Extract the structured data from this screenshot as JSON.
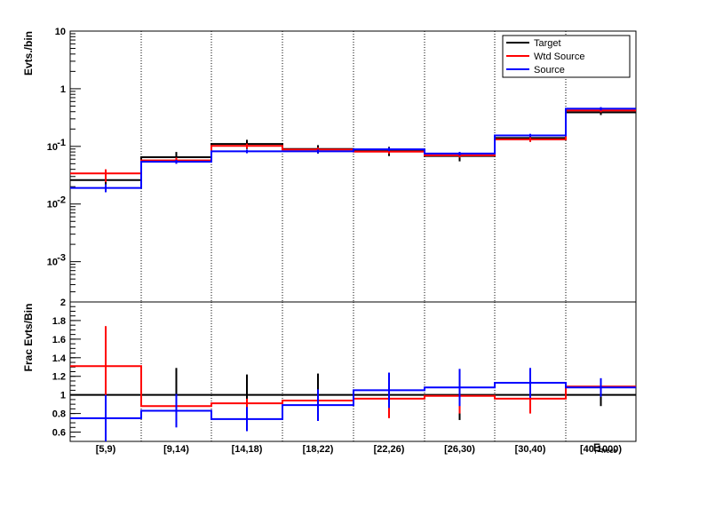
{
  "chart_data": [
    {
      "type": "histogram",
      "panel": "top",
      "ylabel": "Evts./bin",
      "yscale": "log",
      "ylim": [
        0.0002,
        10
      ],
      "yticks": [
        {
          "value": 10,
          "label": "10"
        },
        {
          "value": 1,
          "label": "1"
        },
        {
          "value": 0.1,
          "label": "10",
          "exp": "-1"
        },
        {
          "value": 0.01,
          "label": "10",
          "exp": "-2"
        },
        {
          "value": 0.001,
          "label": "10",
          "exp": "-3"
        }
      ],
      "categories": [
        "[5,9)",
        "[9,14)",
        "[14,18)",
        "[18,22)",
        "[22,26)",
        "[26,30)",
        "[30,40)",
        "[40,1000)"
      ],
      "legend": {
        "position": "top-right"
      },
      "series": [
        {
          "name": "Target",
          "color": "#000000",
          "values": [
            0.026,
            0.065,
            0.11,
            0.09,
            0.083,
            0.068,
            0.14,
            0.39
          ],
          "err_low": [
            0.018,
            0.05,
            0.09,
            0.075,
            0.068,
            0.055,
            0.12,
            0.35
          ],
          "err_high": [
            0.036,
            0.08,
            0.13,
            0.105,
            0.098,
            0.08,
            0.16,
            0.43
          ]
        },
        {
          "name": "Wtd Source",
          "color": "#ff0000",
          "values": [
            0.034,
            0.057,
            0.102,
            0.088,
            0.081,
            0.07,
            0.132,
            0.42
          ],
          "err_low": [
            0.024,
            0.05,
            0.092,
            0.08,
            0.074,
            0.064,
            0.12,
            0.39
          ],
          "err_high": [
            0.04,
            0.064,
            0.112,
            0.096,
            0.088,
            0.076,
            0.144,
            0.45
          ]
        },
        {
          "name": "Source",
          "color": "#0000ff",
          "values": [
            0.019,
            0.054,
            0.082,
            0.082,
            0.089,
            0.075,
            0.155,
            0.45
          ],
          "err_low": [
            0.016,
            0.05,
            0.076,
            0.076,
            0.083,
            0.07,
            0.145,
            0.42
          ],
          "err_high": [
            0.022,
            0.058,
            0.088,
            0.088,
            0.095,
            0.08,
            0.165,
            0.48
          ]
        }
      ]
    },
    {
      "type": "histogram",
      "panel": "bottom",
      "ylabel": "Frac Evts/Bin",
      "xlabel": "E",
      "xlabel_sub": "Treco",
      "ylim": [
        0.5,
        2
      ],
      "yticks": [
        {
          "value": 2,
          "label": "2"
        },
        {
          "value": 1.8,
          "label": "1.8"
        },
        {
          "value": 1.6,
          "label": "1.6"
        },
        {
          "value": 1.4,
          "label": "1.4"
        },
        {
          "value": 1.2,
          "label": "1.2"
        },
        {
          "value": 1,
          "label": "1"
        },
        {
          "value": 0.8,
          "label": "0.8"
        },
        {
          "value": 0.6,
          "label": "0.6"
        }
      ],
      "categories": [
        "[5,9)",
        "[9,14)",
        "[14,18)",
        "[18,22)",
        "[22,26)",
        "[26,30)",
        "[30,40)",
        "[40,1000)"
      ],
      "series": [
        {
          "name": "Target",
          "color": "#000000",
          "values": [
            1,
            1,
            1,
            1,
            1,
            1,
            1,
            1
          ],
          "err_low": [
            1,
            0.72,
            0.76,
            0.77,
            1,
            0.73,
            1,
            0.88
          ],
          "err_high": [
            1,
            1.29,
            1.22,
            1.23,
            1,
            1.24,
            1,
            1.13
          ]
        },
        {
          "name": "Wtd Source",
          "color": "#ff0000",
          "values": [
            1.31,
            0.88,
            0.91,
            0.94,
            0.96,
            0.99,
            0.96,
            1.09
          ],
          "err_low": [
            0.9,
            0.83,
            0.86,
            0.89,
            0.75,
            0.8,
            0.8,
            1.05
          ],
          "err_high": [
            1.74,
            0.93,
            0.96,
            0.99,
            1.17,
            1.18,
            1.12,
            1.13
          ]
        },
        {
          "name": "Source",
          "color": "#0000ff",
          "values": [
            0.75,
            0.83,
            0.74,
            0.89,
            1.05,
            1.08,
            1.13,
            1.08
          ],
          "err_low": [
            0.5,
            0.65,
            0.61,
            0.72,
            0.86,
            0.88,
            0.97,
            0.98
          ],
          "err_high": [
            1.0,
            1.01,
            0.87,
            1.06,
            1.24,
            1.28,
            1.29,
            1.18
          ]
        }
      ]
    }
  ]
}
